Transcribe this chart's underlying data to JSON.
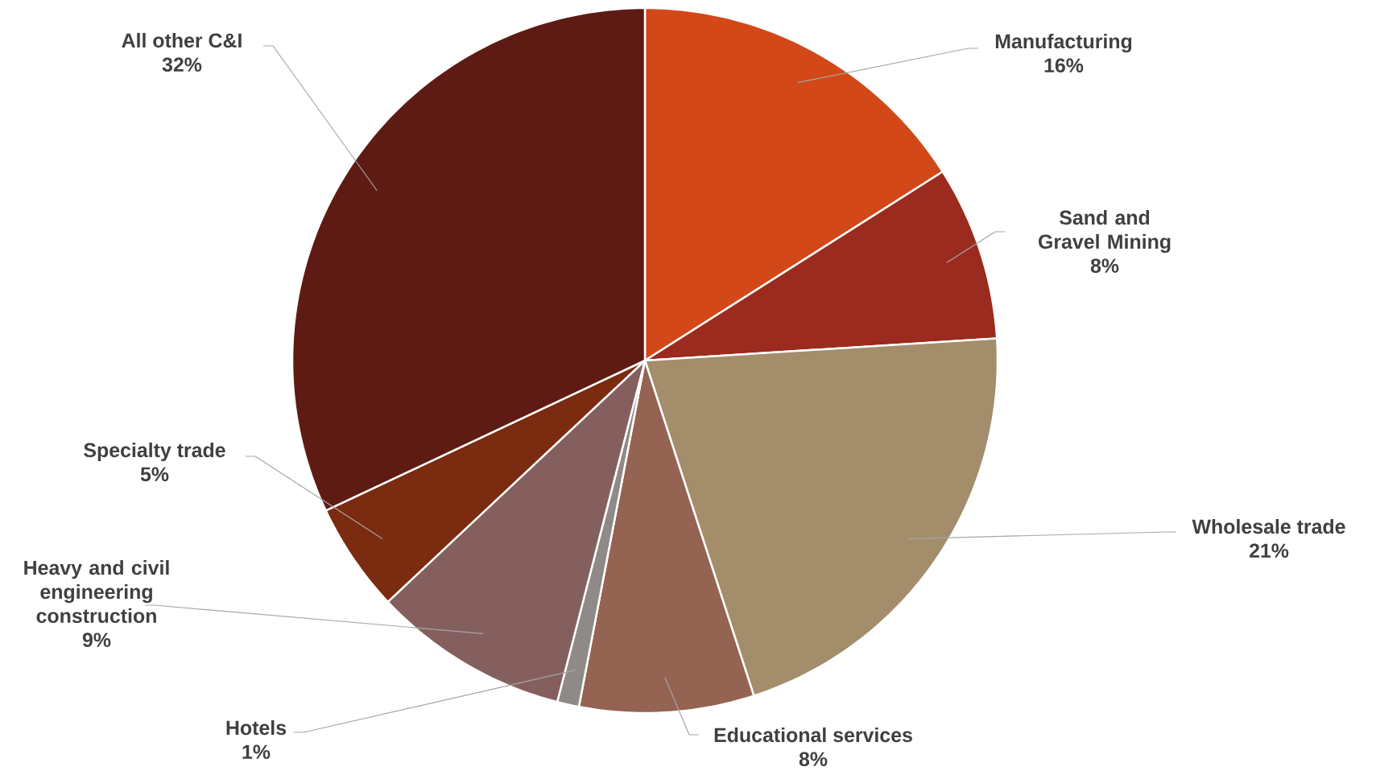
{
  "chart_data": {
    "type": "pie",
    "categories": [
      "Manufacturing",
      "Sand and Gravel Mining",
      "Wholesale trade",
      "Educational services",
      "Hotels",
      "Heavy and civil engineering construction",
      "Specialty trade",
      "All other C&I"
    ],
    "values": [
      16,
      8,
      21,
      8,
      1,
      9,
      5,
      32
    ],
    "value_labels": [
      "16%",
      "8%",
      "21%",
      "8%",
      "1%",
      "9%",
      "5%",
      "32%"
    ],
    "colors": [
      "#d24818",
      "#9a2b1e",
      "#a38d6b",
      "#956352",
      "#8f8a88",
      "#855f5e",
      "#7a2b10",
      "#5e1b14"
    ]
  }
}
